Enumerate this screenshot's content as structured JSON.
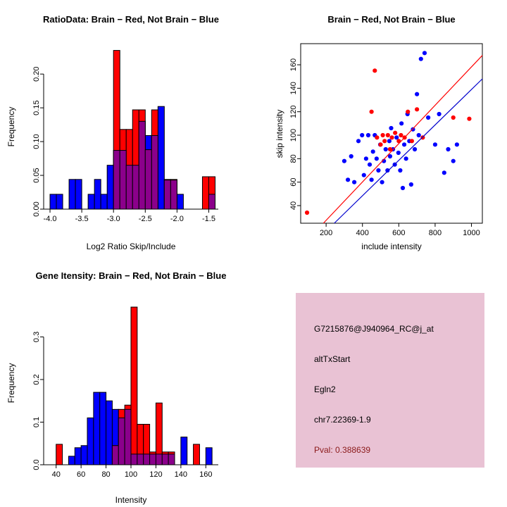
{
  "chart_data": [
    {
      "id": "ratio_hist",
      "type": "bar",
      "title": "RatioData: Brain − Red, Not Brain − Blue",
      "xlabel": "Log2 Ratio Skip/Include",
      "ylabel": "Frequency",
      "xlim": [
        -4.1,
        -1.35
      ],
      "ylim": [
        0,
        0.245
      ],
      "xticks": [
        -4.0,
        -3.5,
        -3.0,
        -2.5,
        -2.0,
        -1.5
      ],
      "xtick_labels": [
        "-4.0",
        "-3.5",
        "-3.0",
        "-2.5",
        "-2.0",
        "-1.5"
      ],
      "yticks": [
        0.0,
        0.05,
        0.1,
        0.15,
        0.2
      ],
      "ytick_labels": [
        "0.00",
        "0.05",
        "0.10",
        "0.15",
        "0.20"
      ],
      "frame": "axes",
      "overlap_color": "#8B008B",
      "series": [
        {
          "name": "Not Brain",
          "color": "#0000FF",
          "bin_start": -4.0,
          "bin_width": 0.1,
          "heights": [
            0.022,
            0.022,
            0,
            0.044,
            0.044,
            0,
            0.022,
            0.044,
            0.022,
            0.065,
            0.087,
            0.087,
            0.065,
            0.065,
            0.13,
            0.109,
            0.109,
            0.152,
            0.043,
            0.043,
            0.022,
            0,
            0,
            0,
            0,
            0.022
          ]
        },
        {
          "name": "Brain",
          "color": "#FF0000",
          "bin_start": -3.0,
          "bin_width": 0.1,
          "heights": [
            0.235,
            0.118,
            0.118,
            0.147,
            0.147,
            0.088,
            0.147,
            0,
            0.044,
            0.044,
            0,
            0,
            0,
            0,
            0.048,
            0.048
          ]
        }
      ]
    },
    {
      "id": "scatter",
      "type": "scatter",
      "title": "Brain − Red, Not Brain − Blue",
      "xlabel": "include intensity",
      "ylabel": "skip intensity",
      "xlim": [
        60,
        1060
      ],
      "ylim": [
        25,
        178
      ],
      "xticks": [
        200,
        400,
        600,
        800,
        1000
      ],
      "xtick_labels": [
        "200",
        "400",
        "600",
        "800",
        "1000"
      ],
      "yticks": [
        40,
        60,
        80,
        100,
        120,
        140,
        160
      ],
      "ytick_labels": [
        "40",
        "60",
        "80",
        "100",
        "120",
        "140",
        "160"
      ],
      "frame": "box",
      "series": [
        {
          "name": "Not Brain",
          "color": "#0000FF",
          "points": [
            [
              300,
              78
            ],
            [
              320,
              62
            ],
            [
              338,
              82
            ],
            [
              355,
              60
            ],
            [
              378,
              95
            ],
            [
              398,
              100
            ],
            [
              408,
              66
            ],
            [
              420,
              80
            ],
            [
              432,
              100
            ],
            [
              440,
              75
            ],
            [
              450,
              62
            ],
            [
              458,
              86
            ],
            [
              468,
              100
            ],
            [
              478,
              80
            ],
            [
              488,
              70
            ],
            [
              498,
              92
            ],
            [
              508,
              60
            ],
            [
              518,
              78
            ],
            [
              528,
              88
            ],
            [
              538,
              70
            ],
            [
              548,
              95
            ],
            [
              552,
              82
            ],
            [
              558,
              106
            ],
            [
              568,
              88
            ],
            [
              578,
              75
            ],
            [
              588,
              98
            ],
            [
              598,
              85
            ],
            [
              608,
              70
            ],
            [
              615,
              110
            ],
            [
              622,
              55
            ],
            [
              630,
              92
            ],
            [
              640,
              80
            ],
            [
              648,
              118
            ],
            [
              658,
              95
            ],
            [
              668,
              58
            ],
            [
              678,
              105
            ],
            [
              688,
              88
            ],
            [
              700,
              135
            ],
            [
              710,
              100
            ],
            [
              722,
              165
            ],
            [
              742,
              170
            ],
            [
              762,
              115
            ],
            [
              800,
              92
            ],
            [
              822,
              118
            ],
            [
              850,
              68
            ],
            [
              872,
              88
            ],
            [
              900,
              78
            ],
            [
              920,
              92
            ]
          ]
        },
        {
          "name": "Brain",
          "color": "#FF0000",
          "points": [
            [
              95,
              34
            ],
            [
              450,
              120
            ],
            [
              468,
              155
            ],
            [
              480,
              98
            ],
            [
              500,
              92
            ],
            [
              512,
              100
            ],
            [
              522,
              95
            ],
            [
              540,
              100
            ],
            [
              552,
              88
            ],
            [
              562,
              98
            ],
            [
              580,
              102
            ],
            [
              600,
              95
            ],
            [
              612,
              100
            ],
            [
              632,
              98
            ],
            [
              650,
              120
            ],
            [
              672,
              95
            ],
            [
              700,
              122
            ],
            [
              732,
              98
            ],
            [
              900,
              115
            ],
            [
              988,
              114
            ]
          ]
        }
      ],
      "lines": [
        {
          "name": "brain-fit-line",
          "color": "#FF0000",
          "p1": [
            185,
            25
          ],
          "p2": [
            1060,
            168
          ]
        },
        {
          "name": "notbrain-fit-line",
          "color": "#0000CD",
          "p1": [
            245,
            25
          ],
          "p2": [
            1060,
            148
          ]
        }
      ]
    },
    {
      "id": "gene_hist",
      "type": "bar",
      "title": "Gene Itensity: Brain − Red, Not Brain − Blue",
      "xlabel": "Intensity",
      "ylabel": "Frequency",
      "xlim": [
        30,
        170
      ],
      "ylim": [
        0,
        0.385
      ],
      "xticks": [
        40,
        60,
        80,
        100,
        120,
        140,
        160
      ],
      "xtick_labels": [
        "40",
        "60",
        "80",
        "100",
        "120",
        "140",
        "160"
      ],
      "yticks": [
        0.0,
        0.1,
        0.2,
        0.3
      ],
      "ytick_labels": [
        "0.0",
        "0.1",
        "0.2",
        "0.3"
      ],
      "frame": "axes",
      "overlap_color": "#8B008B",
      "series": [
        {
          "name": "Not Brain",
          "color": "#0000FF",
          "bin_start": 50,
          "bin_width": 5,
          "heights": [
            0.02,
            0.04,
            0.045,
            0.11,
            0.17,
            0.17,
            0.15,
            0.13,
            0.11,
            0.13,
            0.025,
            0.025,
            0.025,
            0.025,
            0.025,
            0.025,
            0.025,
            0,
            0.065,
            0,
            0,
            0,
            0.04
          ]
        },
        {
          "name": "Brain",
          "color": "#FF0000",
          "bin_start": 40,
          "bin_width": 5,
          "heights": [
            0.048,
            0,
            0,
            0,
            0,
            0,
            0,
            0,
            0,
            0.045,
            0.13,
            0.14,
            0.37,
            0.095,
            0.095,
            0.03,
            0.145,
            0.03,
            0.03,
            0,
            0,
            0,
            0.048
          ]
        }
      ]
    }
  ],
  "info_box": {
    "bg_color": "#E9C2D4",
    "lines": [
      {
        "text": "G7215876@J940964_RC@j_at",
        "color": "#000000"
      },
      {
        "text": "altTxStart",
        "color": "#000000"
      },
      {
        "text": "Egln2",
        "color": "#000000"
      },
      {
        "text": "chr7.22369-1.9",
        "color": "#000000"
      },
      {
        "text": "Pval: 0.388639",
        "color": "#8B1A1A"
      }
    ]
  }
}
